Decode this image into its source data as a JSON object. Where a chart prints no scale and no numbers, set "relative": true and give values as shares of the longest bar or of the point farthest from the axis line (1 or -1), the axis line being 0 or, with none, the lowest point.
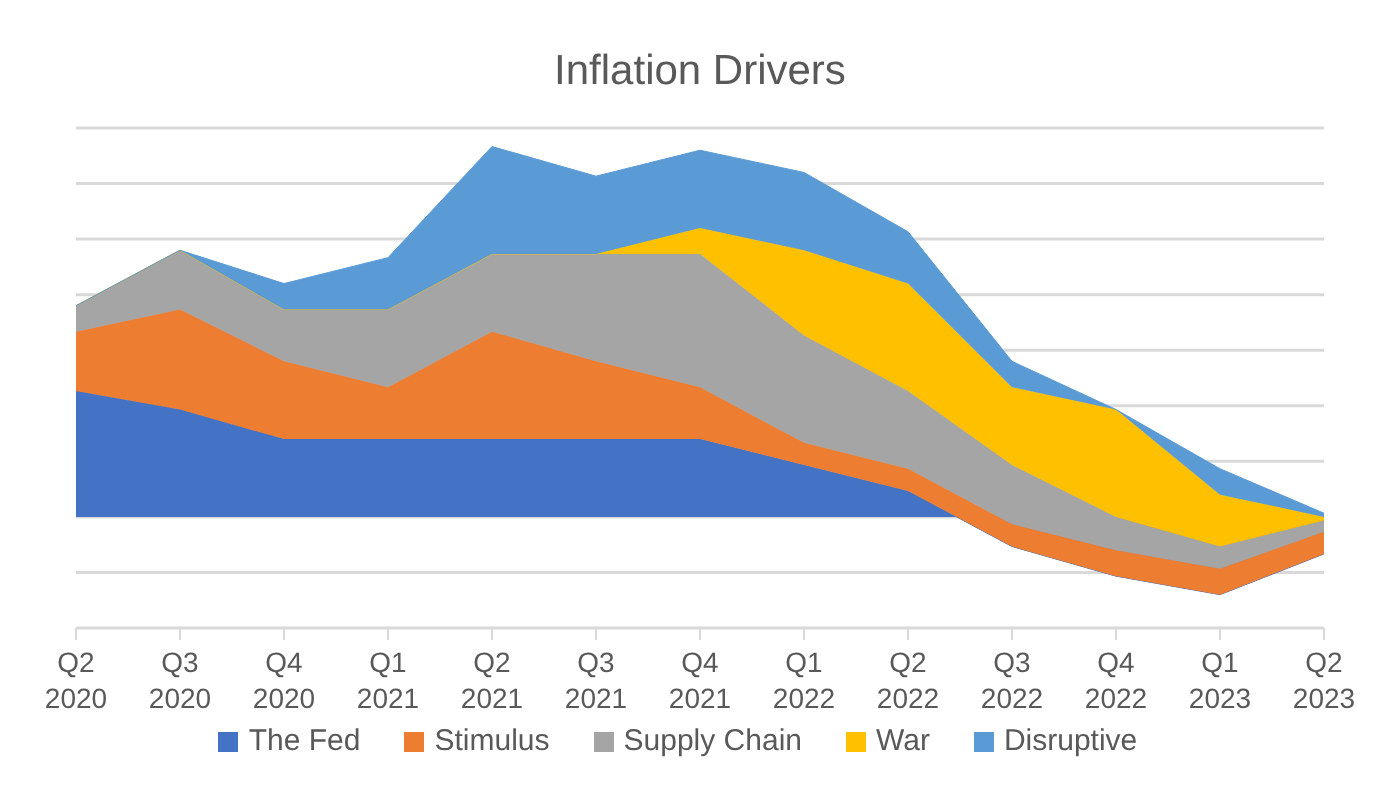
{
  "chart_data": {
    "type": "area",
    "title": "Inflation Drivers",
    "stacked": true,
    "relative": true,
    "grid": "y",
    "legend": "bottom",
    "categories": [
      "Q2 2020",
      "Q3 2020",
      "Q4 2020",
      "Q1 2021",
      "Q2 2021",
      "Q3 2021",
      "Q4 2021",
      "Q1 2022",
      "Q2 2022",
      "Q3 2022",
      "Q4 2022",
      "Q1 2023",
      "Q2 2023"
    ],
    "series": [
      {
        "name": "The Fed",
        "color": "#4472c4",
        "values": [
          0.34,
          0.29,
          0.21,
          0.21,
          0.21,
          0.21,
          0.21,
          0.14,
          0.07,
          -0.08,
          -0.16,
          -0.21,
          -0.1
        ]
      },
      {
        "name": "Stimulus",
        "color": "#ed7d31",
        "values": [
          0.16,
          0.27,
          0.21,
          0.14,
          0.29,
          0.21,
          0.14,
          0.06,
          0.06,
          0.06,
          0.07,
          0.07,
          0.06
        ]
      },
      {
        "name": "Supply Chain",
        "color": "#a5a5a5",
        "values": [
          0.07,
          0.16,
          0.14,
          0.21,
          0.21,
          0.29,
          0.36,
          0.29,
          0.21,
          0.16,
          0.09,
          0.06,
          0.03
        ]
      },
      {
        "name": "War",
        "color": "#ffc000",
        "values": [
          0,
          0,
          0,
          0,
          0,
          0,
          0.07,
          0.23,
          0.29,
          0.21,
          0.29,
          0.14,
          0.01
        ]
      },
      {
        "name": "Disruptive",
        "color": "#5b9bd5",
        "values": [
          0,
          0,
          0.07,
          0.14,
          0.29,
          0.21,
          0.21,
          0.21,
          0.14,
          0.07,
          0,
          0.07,
          0.01
        ]
      }
    ]
  }
}
